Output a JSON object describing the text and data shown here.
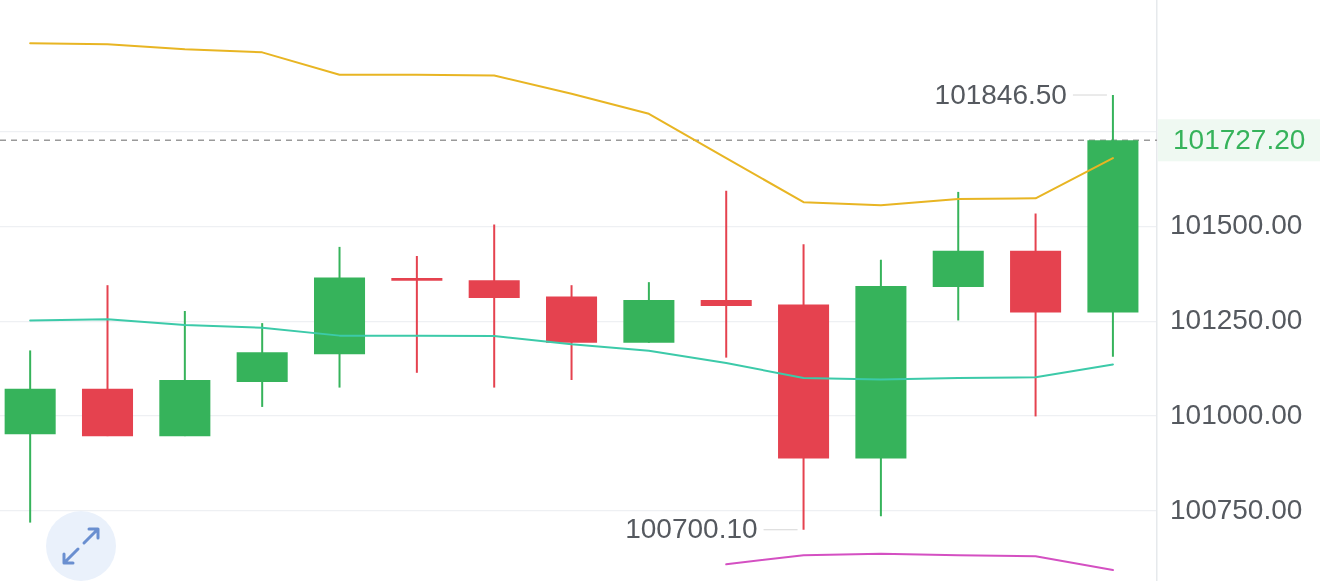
{
  "chart_data": {
    "type": "candlestick",
    "categories": [
      null,
      null,
      null,
      null,
      null,
      null,
      null,
      null,
      null,
      null,
      null,
      null,
      null,
      null,
      null
    ],
    "ohlc": [
      [
        100952,
        101173,
        100719,
        101072
      ],
      [
        101072,
        101345,
        100947,
        100947
      ],
      [
        100947,
        101277,
        100947,
        101095
      ],
      [
        101090,
        101245,
        101024,
        101168
      ],
      [
        101163,
        101446,
        101075,
        101365
      ],
      [
        101364,
        101422,
        101114,
        101357
      ],
      [
        101358,
        101505,
        101075,
        101311
      ],
      [
        101315,
        101345,
        101095,
        101193
      ],
      [
        101193,
        101353,
        101193,
        101306
      ],
      [
        101306,
        101594,
        101154,
        101290
      ],
      [
        101294,
        101453,
        100700.1,
        100888
      ],
      [
        100888,
        101412,
        100736,
        101343
      ],
      [
        101340,
        101591,
        101252,
        101436
      ],
      [
        101436,
        101534,
        100999,
        101273
      ],
      [
        101273,
        101846.5,
        101156,
        101727.2
      ]
    ],
    "colors": [
      "#36b35b",
      "#e5424f",
      "#36b35b",
      "#36b35b",
      "#36b35b",
      "#e5424f",
      "#e5424f",
      "#e5424f",
      "#36b35b",
      "#e5424f",
      "#e5424f",
      "#36b35b",
      "#36b35b",
      "#e5424f",
      "#36b35b"
    ],
    "series": [
      {
        "type": "line",
        "color": "#e8b523",
        "values": [
          101983,
          101980,
          101967,
          101959,
          101900,
          101900,
          101898,
          101850,
          101797,
          101680,
          101564,
          101556,
          101572,
          101574,
          101680
        ]
      },
      {
        "type": "line",
        "color": "#3ccaa9",
        "values": [
          101252,
          101255,
          101240,
          101233,
          101212,
          101212,
          101211,
          101189,
          101172,
          101140,
          101100,
          101096,
          101100,
          101102,
          101136
        ]
      },
      {
        "type": "line",
        "color": "#d450c2",
        "values": [
          null,
          null,
          null,
          null,
          null,
          null,
          null,
          null,
          null,
          100609,
          100633,
          100637,
          100633,
          100630,
          100594
        ]
      }
    ],
    "ylim": [
      100565,
      102097
    ],
    "yticks": [
      {
        "value": 100750,
        "label": "100750.00"
      },
      {
        "value": 101000,
        "label": "101000.00"
      },
      {
        "value": 101250,
        "label": "101250.00"
      },
      {
        "value": 101500,
        "label": "101500.00"
      },
      {
        "value": 101750,
        "label": null
      }
    ],
    "grid": "y",
    "tick_labels": "y",
    "ref_lines": [
      {
        "axis": "y",
        "value": 101727.2,
        "label": "101727.20",
        "color": "#9a9a9a",
        "line_style": "dashed"
      }
    ],
    "annotations": [
      "101846.50",
      "100700.10"
    ]
  }
}
